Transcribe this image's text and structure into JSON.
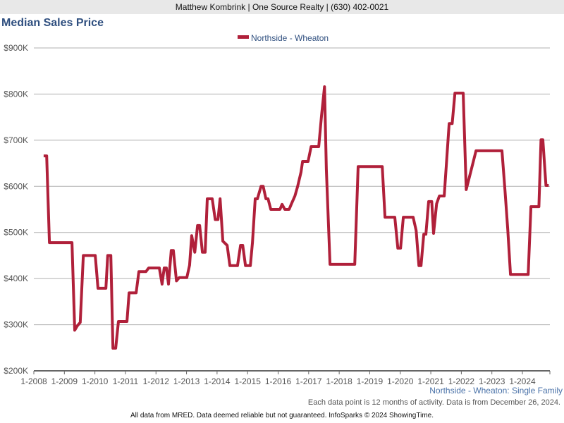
{
  "header": {
    "text": "Matthew Kombrink | One Source Realty | (630) 402-0021"
  },
  "subtitle": "Northside - Wheaton: Single Family",
  "note": "Each data point is 12 months of activity. Data is from December 26, 2024.",
  "footer": "All data from MRED. Data deemed reliable but not guaranteed. InfoSparks © 2024 ShowingTime.",
  "colors": {
    "line": "#b0203a",
    "grid": "#b0b0b0",
    "axis": "#666666"
  },
  "chart_data": {
    "type": "line",
    "title": "Median Sales Price",
    "xlabel": "",
    "ylabel": "",
    "xlim": [
      2008,
      2024.9
    ],
    "ylim": [
      200,
      900
    ],
    "grid": true,
    "legend_placement": "top-center",
    "y_ticks": [
      {
        "v": 200,
        "label": "$200K"
      },
      {
        "v": 300,
        "label": "$300K"
      },
      {
        "v": 400,
        "label": "$400K"
      },
      {
        "v": 500,
        "label": "$500K"
      },
      {
        "v": 600,
        "label": "$600K"
      },
      {
        "v": 700,
        "label": "$700K"
      },
      {
        "v": 800,
        "label": "$800K"
      },
      {
        "v": 900,
        "label": "$900K"
      }
    ],
    "x_ticks": [
      {
        "v": 2008,
        "label": "1-2008"
      },
      {
        "v": 2009,
        "label": "1-2009"
      },
      {
        "v": 2010,
        "label": "1-2010"
      },
      {
        "v": 2011,
        "label": "1-2011"
      },
      {
        "v": 2012,
        "label": "1-2012"
      },
      {
        "v": 2013,
        "label": "1-2013"
      },
      {
        "v": 2014,
        "label": "1-2014"
      },
      {
        "v": 2015,
        "label": "1-2015"
      },
      {
        "v": 2016,
        "label": "1-2016"
      },
      {
        "v": 2017,
        "label": "1-2017"
      },
      {
        "v": 2018,
        "label": "1-2018"
      },
      {
        "v": 2019,
        "label": "1-2019"
      },
      {
        "v": 2020,
        "label": "1-2020"
      },
      {
        "v": 2021,
        "label": "1-2021"
      },
      {
        "v": 2022,
        "label": "1-2022"
      },
      {
        "v": 2023,
        "label": "1-2023"
      },
      {
        "v": 2024,
        "label": "1-2024"
      }
    ],
    "series": [
      {
        "name": "Northside - Wheaton",
        "unit": "$K",
        "points": [
          [
            2008.32,
            666
          ],
          [
            2008.42,
            666
          ],
          [
            2008.51,
            478
          ],
          [
            2009.25,
            478
          ],
          [
            2009.34,
            288
          ],
          [
            2009.43,
            298
          ],
          [
            2009.52,
            305
          ],
          [
            2009.62,
            450
          ],
          [
            2010.01,
            450
          ],
          [
            2010.1,
            379
          ],
          [
            2010.36,
            379
          ],
          [
            2010.42,
            450
          ],
          [
            2010.52,
            450
          ],
          [
            2010.59,
            249
          ],
          [
            2010.68,
            249
          ],
          [
            2010.77,
            307
          ],
          [
            2011.05,
            307
          ],
          [
            2011.12,
            369
          ],
          [
            2011.35,
            369
          ],
          [
            2011.44,
            415
          ],
          [
            2011.67,
            415
          ],
          [
            2011.76,
            423
          ],
          [
            2012.11,
            423
          ],
          [
            2012.2,
            388
          ],
          [
            2012.27,
            423
          ],
          [
            2012.34,
            423
          ],
          [
            2012.41,
            388
          ],
          [
            2012.5,
            461
          ],
          [
            2012.57,
            461
          ],
          [
            2012.67,
            395
          ],
          [
            2012.76,
            402
          ],
          [
            2013.01,
            402
          ],
          [
            2013.1,
            429
          ],
          [
            2013.17,
            493
          ],
          [
            2013.27,
            457
          ],
          [
            2013.36,
            515
          ],
          [
            2013.43,
            515
          ],
          [
            2013.52,
            457
          ],
          [
            2013.61,
            457
          ],
          [
            2013.68,
            573
          ],
          [
            2013.84,
            573
          ],
          [
            2013.94,
            528
          ],
          [
            2014.03,
            528
          ],
          [
            2014.1,
            573
          ],
          [
            2014.19,
            481
          ],
          [
            2014.33,
            472
          ],
          [
            2014.42,
            428
          ],
          [
            2014.67,
            428
          ],
          [
            2014.77,
            472
          ],
          [
            2014.84,
            472
          ],
          [
            2014.93,
            428
          ],
          [
            2015.09,
            428
          ],
          [
            2015.16,
            478
          ],
          [
            2015.25,
            573
          ],
          [
            2015.32,
            573
          ],
          [
            2015.44,
            600
          ],
          [
            2015.51,
            600
          ],
          [
            2015.6,
            573
          ],
          [
            2015.67,
            573
          ],
          [
            2015.76,
            550
          ],
          [
            2016.06,
            550
          ],
          [
            2016.13,
            561
          ],
          [
            2016.22,
            550
          ],
          [
            2016.36,
            550
          ],
          [
            2016.43,
            561
          ],
          [
            2016.55,
            579
          ],
          [
            2016.64,
            600
          ],
          [
            2016.75,
            631
          ],
          [
            2016.8,
            654
          ],
          [
            2016.98,
            654
          ],
          [
            2017.08,
            686
          ],
          [
            2017.33,
            686
          ],
          [
            2017.42,
            752
          ],
          [
            2017.52,
            816
          ],
          [
            2017.58,
            637
          ],
          [
            2017.7,
            431
          ],
          [
            2018.51,
            431
          ],
          [
            2018.62,
            643
          ],
          [
            2019.41,
            643
          ],
          [
            2019.5,
            533
          ],
          [
            2019.82,
            533
          ],
          [
            2019.92,
            466
          ],
          [
            2020.01,
            466
          ],
          [
            2020.1,
            533
          ],
          [
            2020.42,
            533
          ],
          [
            2020.52,
            504
          ],
          [
            2020.61,
            428
          ],
          [
            2020.68,
            428
          ],
          [
            2020.77,
            496
          ],
          [
            2020.84,
            496
          ],
          [
            2020.93,
            567
          ],
          [
            2021.03,
            567
          ],
          [
            2021.09,
            498
          ],
          [
            2021.19,
            562
          ],
          [
            2021.28,
            579
          ],
          [
            2021.44,
            579
          ],
          [
            2021.6,
            736
          ],
          [
            2021.7,
            736
          ],
          [
            2021.79,
            802
          ],
          [
            2022.06,
            802
          ],
          [
            2022.16,
            593
          ],
          [
            2022.32,
            635
          ],
          [
            2022.48,
            677
          ],
          [
            2023.33,
            677
          ],
          [
            2023.43,
            591
          ],
          [
            2023.52,
            507
          ],
          [
            2023.61,
            409
          ],
          [
            2024.19,
            409
          ],
          [
            2024.28,
            556
          ],
          [
            2024.54,
            556
          ],
          [
            2024.61,
            701
          ],
          [
            2024.67,
            701
          ],
          [
            2024.77,
            602
          ],
          [
            2024.86,
            602
          ]
        ]
      }
    ]
  }
}
